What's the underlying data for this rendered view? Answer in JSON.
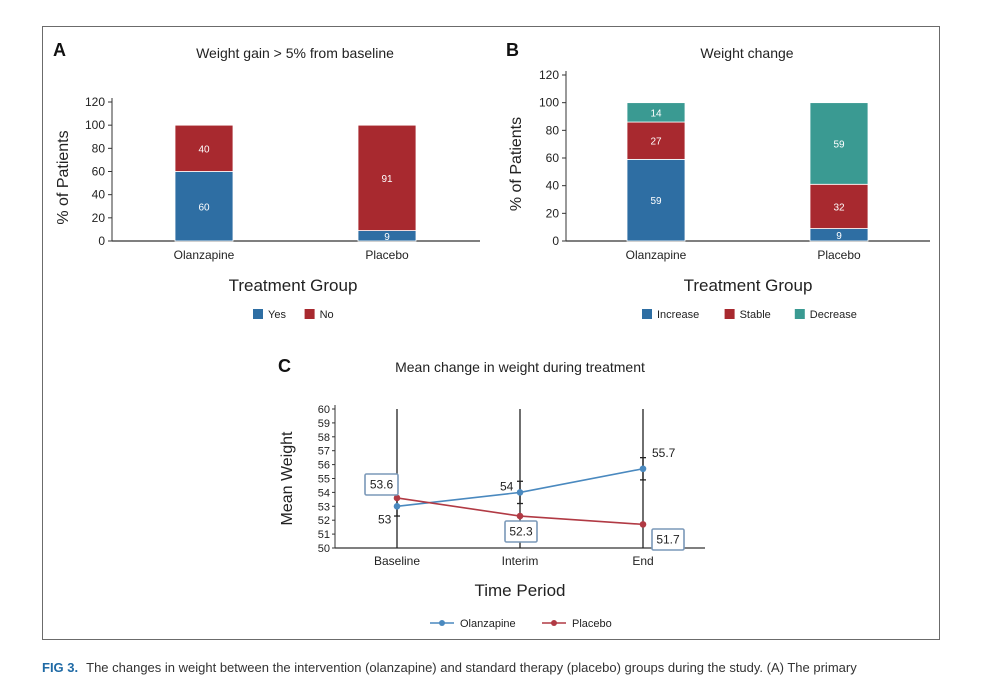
{
  "colors": {
    "blue": "#2e6ea3",
    "red": "#a8292f",
    "teal": "#3a9a92",
    "olanzapine_line": "#4a89bf",
    "placebo_line": "#b13a44",
    "label_box": "#7a98b8"
  },
  "caption": {
    "label": "FIG 3.",
    "text": "The changes in weight between the intervention (olanzapine) and standard therapy (placebo) groups during the study. (A) The primary"
  },
  "chart_data": [
    {
      "panel": "A",
      "type": "bar",
      "stacked": true,
      "title": "Weight gain > 5% from baseline",
      "xlabel": "Treatment Group",
      "ylabel": "% of Patients",
      "ylim": [
        0,
        120
      ],
      "yticks": [
        0,
        20,
        40,
        60,
        80,
        100,
        120
      ],
      "categories": [
        "Olanzapine",
        "Placebo"
      ],
      "series": [
        {
          "name": "Yes",
          "color": "#2e6ea3",
          "values": [
            60,
            9
          ]
        },
        {
          "name": "No",
          "color": "#a8292f",
          "values": [
            40,
            91
          ]
        }
      ],
      "legend": "bottom"
    },
    {
      "panel": "B",
      "type": "bar",
      "stacked": true,
      "title": "Weight change",
      "xlabel": "Treatment Group",
      "ylabel": "% of Patients",
      "ylim": [
        0,
        120
      ],
      "yticks": [
        0,
        20,
        40,
        60,
        80,
        100,
        120
      ],
      "categories": [
        "Olanzapine",
        "Placebo"
      ],
      "series": [
        {
          "name": "Increase",
          "color": "#2e6ea3",
          "values": [
            59,
            9
          ]
        },
        {
          "name": "Stable",
          "color": "#a8292f",
          "values": [
            27,
            32
          ]
        },
        {
          "name": "Decrease",
          "color": "#3a9a92",
          "values": [
            14,
            59
          ]
        }
      ],
      "legend": "bottom"
    },
    {
      "panel": "C",
      "type": "line",
      "title": "Mean change in weight during treatment",
      "xlabel": "Time Period",
      "ylabel": "Mean Weight",
      "ylim": [
        50,
        60
      ],
      "yticks": [
        50,
        51,
        52,
        53,
        54,
        55,
        56,
        57,
        58,
        59,
        60
      ],
      "categories": [
        "Baseline",
        "Interim",
        "End"
      ],
      "series": [
        {
          "name": "Olanzapine",
          "color": "#4a89bf",
          "values": [
            53,
            54,
            55.7
          ],
          "labels": [
            "53",
            "54",
            "55.7"
          ],
          "boxed": false,
          "error_low": [
            52.3,
            53.2,
            54.9
          ],
          "error_high": [
            53.6,
            54.8,
            56.5
          ]
        },
        {
          "name": "Placebo",
          "color": "#b13a44",
          "values": [
            53.6,
            52.3,
            51.7
          ],
          "labels": [
            "53.6",
            "52.3",
            "51.7"
          ],
          "boxed": true,
          "error_low": [
            50,
            50,
            50
          ],
          "error_high": [
            60,
            60,
            60
          ]
        }
      ],
      "legend": "bottom"
    }
  ]
}
